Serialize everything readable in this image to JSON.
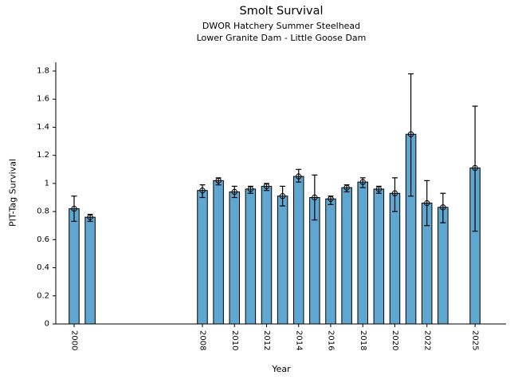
{
  "chart_data": {
    "type": "bar",
    "title": "Smolt Survival",
    "subtitles": [
      "DWOR Hatchery Summer Steelhead",
      "Lower Granite Dam - Little Goose Dam"
    ],
    "xlabel": "Year",
    "ylabel": "PIT-Tag Survival",
    "grid": false,
    "legend": "none",
    "bar_color": "#5FA6D1",
    "bar_edge_color": "#000000",
    "error_color": "#000000",
    "marker": "open-circle",
    "ylim": [
      0,
      1.86
    ],
    "years": [
      2000,
      2001,
      2008,
      2009,
      2010,
      2011,
      2012,
      2013,
      2014,
      2015,
      2016,
      2017,
      2018,
      2019,
      2020,
      2021,
      2022,
      2023,
      2025
    ],
    "values": [
      0.82,
      0.76,
      0.95,
      1.02,
      0.94,
      0.96,
      0.98,
      0.91,
      1.05,
      0.9,
      0.89,
      0.97,
      1.01,
      0.96,
      0.93,
      1.35,
      0.86,
      0.83,
      1.11
    ],
    "error_low": [
      0.73,
      0.73,
      0.9,
      0.99,
      0.9,
      0.93,
      0.95,
      0.84,
      1.01,
      0.74,
      0.85,
      0.94,
      0.97,
      0.93,
      0.8,
      0.91,
      0.7,
      0.72,
      0.66
    ],
    "error_high": [
      0.91,
      0.78,
      0.99,
      1.04,
      0.98,
      0.98,
      1.0,
      0.98,
      1.1,
      1.06,
      0.91,
      0.99,
      1.04,
      0.98,
      1.04,
      1.78,
      1.02,
      0.93,
      1.55
    ],
    "xtick_years": [
      2000,
      2008,
      2010,
      2012,
      2014,
      2016,
      2018,
      2020,
      2022,
      2025
    ],
    "xtick_labels": [
      "2000",
      "2008",
      "2010",
      "2012",
      "2014",
      "2016",
      "2018",
      "2020",
      "2022",
      "2025"
    ],
    "ytick_values": [
      0,
      0.2,
      0.4,
      0.6,
      0.8,
      1,
      1.2,
      1.4,
      1.6,
      1.8
    ],
    "ytick_labels": [
      "0",
      "0.2",
      "0.4",
      "0.6",
      "0.8",
      "1",
      "1.2",
      "1.4",
      "1.6",
      "1.8"
    ]
  }
}
